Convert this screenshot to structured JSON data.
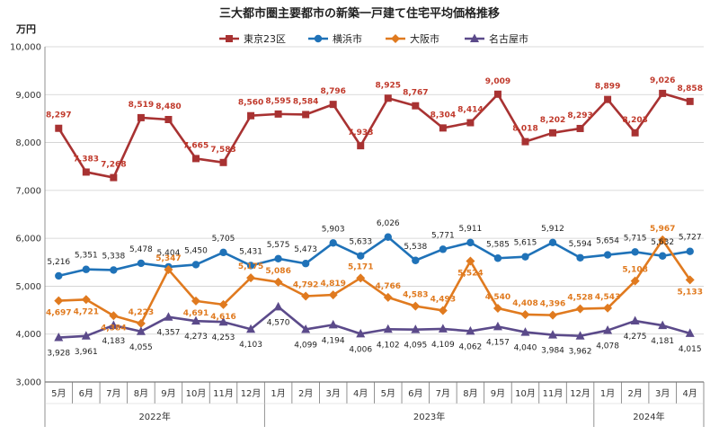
{
  "chart_data": {
    "type": "line",
    "title": "三大都市圏主要都市の新築一戸建て住宅平均価格推移",
    "unit_label": "万円",
    "ylim": [
      3000,
      10000
    ],
    "yticks": [
      "3,000",
      "4,000",
      "5,000",
      "6,000",
      "7,000",
      "8,000",
      "9,000",
      "10,000"
    ],
    "categories": [
      "5月",
      "6月",
      "7月",
      "8月",
      "9月",
      "10月",
      "11月",
      "12月",
      "1月",
      "2月",
      "3月",
      "4月",
      "5月",
      "6月",
      "7月",
      "8月",
      "9月",
      "10月",
      "11月",
      "12月",
      "1月",
      "2月",
      "3月",
      "4月"
    ],
    "year_groups": [
      {
        "label": "2022年",
        "start": 0,
        "end": 7
      },
      {
        "label": "2023年",
        "start": 8,
        "end": 19
      },
      {
        "label": "2024年",
        "start": 20,
        "end": 23
      }
    ],
    "grid": true,
    "legend_position": "top",
    "series": [
      {
        "name": "東京23区",
        "color": "#a83232",
        "marker": "square",
        "values": [
          8297,
          7383,
          7268,
          8519,
          8480,
          7665,
          7583,
          8560,
          8595,
          8584,
          8796,
          7933,
          8925,
          8767,
          8304,
          8414,
          9009,
          8018,
          8202,
          8293,
          8899,
          8203,
          9026,
          8858
        ],
        "labels": [
          "8,297",
          "7,383",
          "7,268",
          "8,519",
          "8,480",
          "7,665",
          "7,583",
          "8,560",
          "8,595",
          "8,584",
          "8,796",
          "7,933",
          "8,925",
          "8,767",
          "8,304",
          "8,414",
          "9,009",
          "8,018",
          "8,202",
          "8,293",
          "8,899",
          "8,203",
          "9,026",
          "8,858"
        ]
      },
      {
        "name": "横浜市",
        "color": "#1f72b8",
        "marker": "circle",
        "values": [
          5216,
          5351,
          5338,
          5478,
          5404,
          5450,
          5705,
          5431,
          5575,
          5473,
          5903,
          5633,
          6026,
          5538,
          5771,
          5911,
          5585,
          5615,
          5912,
          5594,
          5654,
          5715,
          5632,
          5727
        ],
        "labels": [
          "5,216",
          "5,351",
          "5,338",
          "5,478",
          "5,404",
          "5,450",
          "5,705",
          "5,431",
          "5,575",
          "5,473",
          "5,903",
          "5,633",
          "6,026",
          "5,538",
          "5,771",
          "5,911",
          "5,585",
          "5,615",
          "5,912",
          "5,594",
          "5,654",
          "5,715",
          "5,632",
          "5,727"
        ]
      },
      {
        "name": "大阪市",
        "color": "#e07a1f",
        "marker": "diamond",
        "values": [
          4697,
          4721,
          4384,
          4223,
          5347,
          4691,
          4616,
          5175,
          5086,
          4792,
          4819,
          5171,
          4766,
          4583,
          4493,
          5524,
          4540,
          4408,
          4396,
          4528,
          4543,
          5108,
          5967,
          5133
        ],
        "labels": [
          "4,697",
          "4,721",
          "4,384",
          "4,223",
          "5,347",
          "4,691",
          "4,616",
          "5,175",
          "5,086",
          "4,792",
          "4,819",
          "5,171",
          "4,766",
          "4,583",
          "4,493",
          "5,524",
          "4,540",
          "4,408",
          "4,396",
          "4,528",
          "4,543",
          "5,108",
          "5,967",
          "5,133"
        ]
      },
      {
        "name": "名古屋市",
        "color": "#5b4a8a",
        "marker": "triangle",
        "values": [
          3928,
          3961,
          4183,
          4055,
          4357,
          4273,
          4253,
          4103,
          4570,
          4099,
          4194,
          4006,
          4102,
          4095,
          4109,
          4062,
          4157,
          4040,
          3984,
          3962,
          4078,
          4275,
          4181,
          4015
        ],
        "labels": [
          "3,928",
          "3,961",
          "4,183",
          "4,055",
          "4,357",
          "4,273",
          "4,253",
          "4,103",
          "4,570",
          "4,099",
          "4,194",
          "4,006",
          "4,102",
          "4,095",
          "4,109",
          "4,062",
          "4,157",
          "4,040",
          "3,984",
          "3,962",
          "4,078",
          "4,275",
          "4,181",
          "4,015"
        ]
      }
    ]
  }
}
